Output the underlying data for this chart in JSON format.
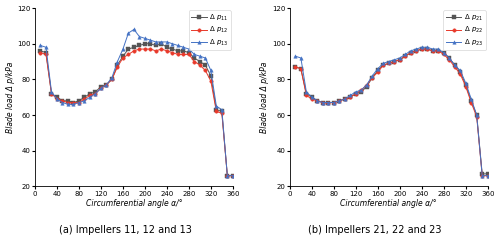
{
  "angles": [
    10,
    20,
    30,
    40,
    50,
    60,
    70,
    80,
    90,
    100,
    110,
    120,
    130,
    140,
    150,
    160,
    170,
    180,
    190,
    200,
    210,
    220,
    230,
    240,
    250,
    260,
    270,
    280,
    290,
    300,
    310,
    320,
    330,
    340,
    350,
    360
  ],
  "series_a": {
    "p11": [
      96,
      95,
      72,
      70,
      68,
      68,
      67,
      68,
      70,
      72,
      73,
      76,
      77,
      80,
      88,
      93,
      97,
      98,
      99,
      100,
      100,
      99,
      100,
      98,
      97,
      96,
      96,
      95,
      92,
      90,
      88,
      82,
      63,
      62,
      26,
      26
    ],
    "p12": [
      95,
      94,
      72,
      69,
      68,
      67,
      67,
      67,
      69,
      71,
      72,
      75,
      77,
      80,
      87,
      92,
      94,
      96,
      97,
      97,
      97,
      96,
      97,
      96,
      95,
      94,
      94,
      94,
      90,
      88,
      85,
      79,
      62,
      61,
      26,
      26
    ],
    "p13": [
      99,
      98,
      73,
      69,
      67,
      66,
      66,
      67,
      68,
      70,
      72,
      75,
      77,
      81,
      90,
      97,
      106,
      108,
      104,
      103,
      102,
      101,
      101,
      101,
      100,
      99,
      98,
      97,
      94,
      93,
      92,
      85,
      65,
      63,
      26,
      26
    ]
  },
  "series_b": {
    "p21": [
      87,
      86,
      72,
      70,
      68,
      67,
      67,
      67,
      68,
      69,
      70,
      72,
      73,
      76,
      81,
      85,
      88,
      89,
      90,
      91,
      93,
      95,
      96,
      97,
      97,
      96,
      96,
      95,
      92,
      88,
      84,
      77,
      68,
      60,
      27,
      27
    ],
    "p22": [
      87,
      86,
      71,
      69,
      68,
      67,
      67,
      67,
      68,
      69,
      70,
      72,
      74,
      77,
      81,
      84,
      88,
      89,
      90,
      91,
      93,
      95,
      96,
      97,
      97,
      96,
      96,
      94,
      91,
      87,
      83,
      76,
      67,
      59,
      26,
      26
    ],
    "p23": [
      93,
      92,
      73,
      70,
      68,
      67,
      67,
      67,
      68,
      69,
      71,
      73,
      74,
      77,
      82,
      86,
      89,
      90,
      91,
      92,
      94,
      96,
      97,
      98,
      98,
      97,
      97,
      95,
      92,
      88,
      85,
      78,
      69,
      60,
      26,
      26
    ]
  },
  "colors": {
    "p1": "#555555",
    "p2": "#e8392a",
    "p3": "#4472c4"
  },
  "legend_a": [
    "Δ p11",
    "Δ p12",
    "Δ p13"
  ],
  "legend_b": [
    "Δ p21",
    "Δ p22",
    "Δ p23"
  ],
  "xlabel": "Circumferential angle α/°",
  "ylabel": "Blade load Δ p/kPa",
  "ylim": [
    20,
    120
  ],
  "xlim": [
    0,
    360
  ],
  "yticks": [
    20,
    40,
    60,
    80,
    100,
    120
  ],
  "xticks": [
    0,
    40,
    80,
    120,
    160,
    200,
    240,
    280,
    320,
    360
  ],
  "caption_a": "(a) Impellers 11, 12 and 13",
  "caption_b": "(b) Impellers 21, 22 and 23",
  "label_fontsize": 5.5,
  "tick_fontsize": 5,
  "legend_fontsize": 5,
  "caption_fontsize": 7
}
